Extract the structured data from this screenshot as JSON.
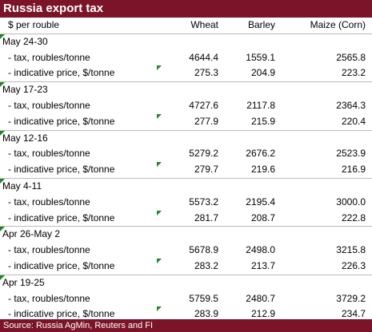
{
  "title": "Russia export tax",
  "header": {
    "unit": "$ per rouble",
    "columns": [
      "Wheat",
      "Barley",
      "Maize (Corn)"
    ]
  },
  "groups": [
    {
      "period": "May 24-30",
      "rows": [
        {
          "label": "- tax, roubles/tonne",
          "values": [
            "4644.4",
            "1559.1",
            "2565.8"
          ]
        },
        {
          "label": "- indicative price, $/tonne",
          "values": [
            "275.3",
            "204.9",
            "223.2"
          ]
        }
      ]
    },
    {
      "period": "May 17-23",
      "rows": [
        {
          "label": "- tax, roubles/tonne",
          "values": [
            "4727.6",
            "2117.8",
            "2364.3"
          ]
        },
        {
          "label": "- indicative price, $/tonne",
          "values": [
            "277.9",
            "215.9",
            "220.4"
          ]
        }
      ]
    },
    {
      "period": "May 12-16",
      "rows": [
        {
          "label": "- tax, roubles/tonne",
          "values": [
            "5279.2",
            "2676.2",
            "2523.9"
          ]
        },
        {
          "label": "- indicative price, $/tonne",
          "values": [
            "279.7",
            "219.6",
            "216.9"
          ]
        }
      ]
    },
    {
      "period": "May 4-11",
      "rows": [
        {
          "label": "- tax, roubles/tonne",
          "values": [
            "5573.2",
            "2195.4",
            "3000.0"
          ]
        },
        {
          "label": "- indicative price, $/tonne",
          "values": [
            "281.7",
            "208.7",
            "222.8"
          ]
        }
      ]
    },
    {
      "period": "Apr 26-May 2",
      "rows": [
        {
          "label": "- tax, roubles/tonne",
          "values": [
            "5678.9",
            "2498.0",
            "3215.8"
          ]
        },
        {
          "label": "- indicative price, $/tonne",
          "values": [
            "283.2",
            "213.7",
            "226.3"
          ]
        }
      ]
    },
    {
      "period": "Apr 19-25",
      "rows": [
        {
          "label": "- tax, roubles/tonne",
          "values": [
            "5759.5",
            "2480.7",
            "3729.2"
          ]
        },
        {
          "label": "- indicative price, $/tonne",
          "values": [
            "283.9",
            "212.9",
            "234.7"
          ]
        }
      ]
    }
  ],
  "source": "Source: Russia AgMin, Reuters and FI"
}
